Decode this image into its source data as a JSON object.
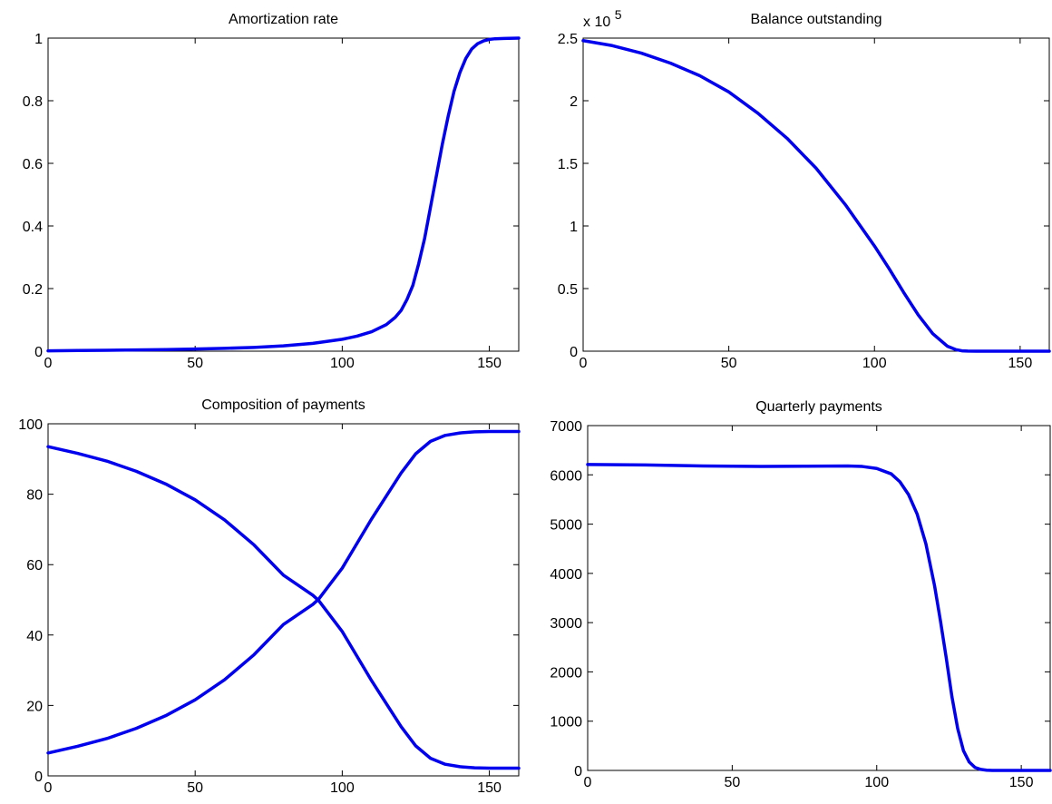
{
  "colors": {
    "line": "#0000ee",
    "axes": "#000000",
    "background": "#ffffff"
  },
  "chart_data": [
    {
      "type": "line",
      "title": "Amortization rate",
      "xlabel": "",
      "ylabel": "",
      "xlim": [
        0,
        160
      ],
      "ylim": [
        0,
        1
      ],
      "grid": false,
      "x_ticks": [
        0,
        50,
        100,
        150
      ],
      "y_ticks": [
        0,
        0.2,
        0.4,
        0.6,
        0.8,
        1
      ],
      "x_tick_labels": [
        "0",
        "50",
        "100",
        "150"
      ],
      "y_tick_labels": [
        "0",
        "0.2",
        "0.4",
        "0.6",
        "0.8",
        "1"
      ],
      "series": [
        {
          "x": [
            0,
            10,
            20,
            30,
            40,
            50,
            60,
            70,
            80,
            90,
            100,
            105,
            110,
            115,
            118,
            120,
            122,
            124,
            126,
            128,
            130,
            132,
            134,
            136,
            138,
            140,
            142,
            144,
            146,
            148,
            150,
            152,
            155,
            160
          ],
          "y": [
            0.001,
            0.002,
            0.003,
            0.004,
            0.005,
            0.007,
            0.009,
            0.012,
            0.017,
            0.025,
            0.038,
            0.048,
            0.062,
            0.085,
            0.108,
            0.13,
            0.165,
            0.21,
            0.28,
            0.36,
            0.46,
            0.56,
            0.66,
            0.75,
            0.83,
            0.89,
            0.935,
            0.965,
            0.982,
            0.991,
            0.996,
            0.998,
            0.999,
            1.0
          ]
        }
      ]
    },
    {
      "type": "line",
      "title": "Balance outstanding",
      "xlabel": "",
      "ylabel": "",
      "xlim": [
        0,
        160
      ],
      "ylim": [
        0,
        250000
      ],
      "grid": false,
      "x_ticks": [
        0,
        50,
        100,
        150
      ],
      "y_ticks": [
        0,
        50000,
        100000,
        150000,
        200000,
        250000
      ],
      "x_tick_labels": [
        "0",
        "50",
        "100",
        "150"
      ],
      "y_tick_labels": [
        "0",
        "0.5",
        "1",
        "1.5",
        "2",
        "2.5"
      ],
      "y_scale_label": "x 10",
      "y_scale_exponent": "5",
      "series": [
        {
          "x": [
            0,
            10,
            20,
            30,
            40,
            50,
            60,
            70,
            80,
            90,
            100,
            105,
            110,
            115,
            120,
            125,
            128,
            130,
            132,
            135,
            140,
            150,
            160
          ],
          "y": [
            248000,
            244000,
            238000,
            230000,
            220000,
            207000,
            190000,
            170000,
            146000,
            117000,
            84000,
            66000,
            47000,
            29000,
            14000,
            4000,
            1200,
            300,
            50,
            0,
            0,
            0,
            0
          ]
        }
      ]
    },
    {
      "type": "line",
      "title": "Composition of payments",
      "xlabel": "",
      "ylabel": "",
      "xlim": [
        0,
        160
      ],
      "ylim": [
        0,
        100
      ],
      "grid": false,
      "x_ticks": [
        0,
        50,
        100,
        150
      ],
      "y_ticks": [
        0,
        20,
        40,
        60,
        80,
        100
      ],
      "x_tick_labels": [
        "0",
        "50",
        "100",
        "150"
      ],
      "y_tick_labels": [
        "0",
        "20",
        "40",
        "60",
        "80",
        "100"
      ],
      "series": [
        {
          "x": [
            0,
            10,
            20,
            30,
            40,
            50,
            60,
            70,
            80,
            90,
            92,
            100,
            110,
            120,
            125,
            130,
            135,
            140,
            145,
            150,
            160
          ],
          "y": [
            93.5,
            91.6,
            89.4,
            86.5,
            82.9,
            78.4,
            72.7,
            65.6,
            57.0,
            51.3,
            49.8,
            41.0,
            27.0,
            14.0,
            8.5,
            5.0,
            3.3,
            2.6,
            2.3,
            2.2,
            2.2
          ]
        },
        {
          "x": [
            0,
            10,
            20,
            30,
            40,
            50,
            60,
            70,
            80,
            90,
            92,
            100,
            110,
            120,
            125,
            130,
            135,
            140,
            145,
            150,
            160
          ],
          "y": [
            6.5,
            8.4,
            10.6,
            13.5,
            17.1,
            21.6,
            27.3,
            34.4,
            43.0,
            48.7,
            50.2,
            59.0,
            73.0,
            86.0,
            91.5,
            95.0,
            96.7,
            97.4,
            97.7,
            97.8,
            97.8
          ]
        }
      ]
    },
    {
      "type": "line",
      "title": "Quarterly payments",
      "xlabel": "",
      "ylabel": "",
      "xlim": [
        0,
        160
      ],
      "ylim": [
        0,
        7000
      ],
      "grid": false,
      "x_ticks": [
        0,
        50,
        100,
        150
      ],
      "y_ticks": [
        0,
        1000,
        2000,
        3000,
        4000,
        5000,
        6000,
        7000
      ],
      "x_tick_labels": [
        "0",
        "50",
        "100",
        "150"
      ],
      "y_tick_labels": [
        "0",
        "1000",
        "2000",
        "3000",
        "4000",
        "5000",
        "6000",
        "7000"
      ],
      "series": [
        {
          "x": [
            0,
            20,
            40,
            60,
            75,
            90,
            95,
            100,
            105,
            108,
            111,
            114,
            117,
            120,
            122,
            124,
            126,
            128,
            130,
            132,
            134,
            136,
            138,
            140,
            150,
            160
          ],
          "y": [
            6210,
            6200,
            6180,
            6170,
            6175,
            6180,
            6170,
            6130,
            6020,
            5860,
            5600,
            5200,
            4600,
            3750,
            3050,
            2300,
            1500,
            850,
            400,
            170,
            60,
            20,
            5,
            0,
            0,
            0
          ]
        }
      ]
    }
  ]
}
